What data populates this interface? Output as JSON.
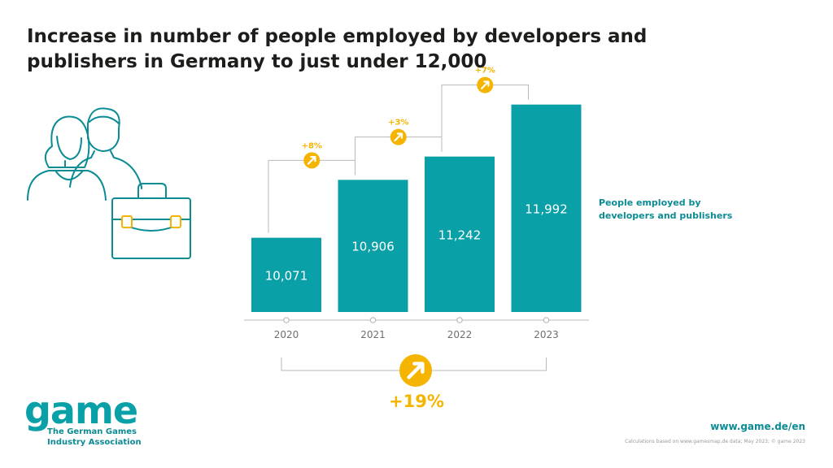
{
  "chart_data": {
    "type": "bar",
    "title": "Increase in number of people employed by developers and publishers in Germany to just under 12,000",
    "categories": [
      "2020",
      "2021",
      "2022",
      "2023"
    ],
    "series": [
      {
        "name": "People employed by developers and publishers",
        "values": [
          10071,
          10906,
          11242,
          11992
        ]
      }
    ],
    "value_labels": [
      "10,071",
      "10,906",
      "11,242",
      "11,992"
    ],
    "changes": [
      "+8%",
      "+3%",
      "+7%"
    ],
    "total_change": "+19%",
    "legend_text": "People employed by developers and publishers",
    "legend_lines": [
      "People employed by",
      "developers and publishers"
    ],
    "xlabel": "",
    "ylabel": "",
    "ylim": [
      0,
      12000
    ]
  },
  "colors": {
    "bar": "#0aa0a8",
    "accent": "#f5b400",
    "teal_text": "#0b8b93",
    "axis": "#b9b9b9",
    "title": "#1d1d1b"
  },
  "footer": {
    "logo_word": "game",
    "logo_line1": "The German Games",
    "logo_line2": "Industry Association",
    "url": "www.game.de/en",
    "source": "Calculations based on www.gamesmap.de data; May 2023; © game 2023"
  },
  "icons": {
    "change_arrow": "arrow-up-right-icon",
    "illustration": "people-briefcase-icon"
  }
}
